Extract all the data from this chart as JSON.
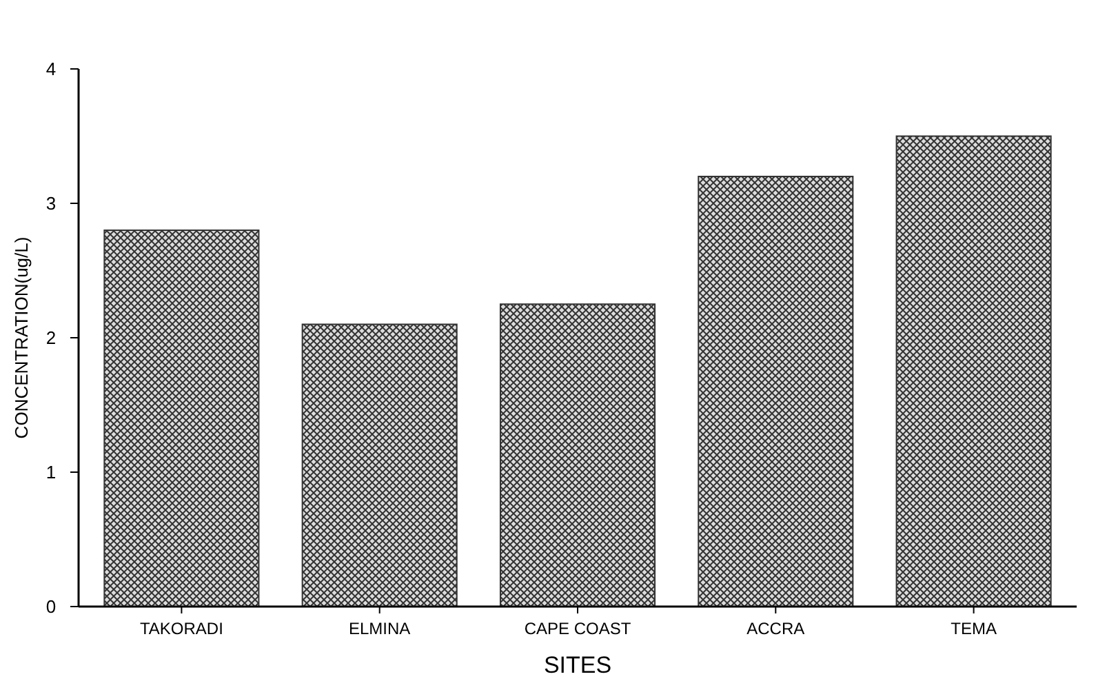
{
  "chart_data": {
    "type": "bar",
    "xlabel": "SITES",
    "ylabel": "CONCENTRATION(ug/L)",
    "categories": [
      "TAKORADI",
      "ELMINA",
      "CAPE COAST",
      "ACCRA",
      "TEMA"
    ],
    "values": [
      2.8,
      2.1,
      2.25,
      3.2,
      3.5
    ],
    "color": "#333333",
    "ylim": [
      0,
      4
    ],
    "yticks": [
      0,
      1,
      2,
      3,
      4
    ],
    "grid": false
  }
}
